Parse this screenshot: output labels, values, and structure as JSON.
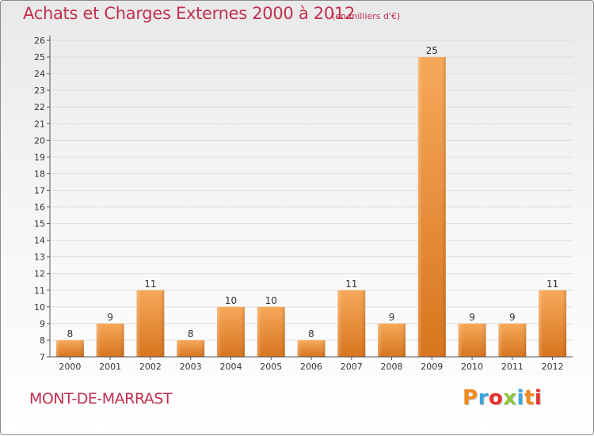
{
  "header": {
    "title": "Achats et Charges Externes 2000 à 2012",
    "subtitle": "(en milliers d'€)"
  },
  "footer": {
    "commune": "MONT-DE-MARRAST",
    "logo_text": "Proxiti",
    "logo_colors": [
      "#f08a1c",
      "#3aa7e0",
      "#e8322e",
      "#8cc63f",
      "#3aa7e0",
      "#f08a1c",
      "#e8322e"
    ]
  },
  "colors": {
    "bar_light": "#f6a95a",
    "bar_dark": "#d8751f",
    "axis": "#555555",
    "grid": "#dddddd",
    "title": "#c0304e"
  },
  "chart_data": {
    "type": "bar",
    "title": "Achats et Charges Externes 2000 à 2012",
    "subtitle": "(en milliers d'€)",
    "xlabel": "",
    "ylabel": "",
    "ylim": [
      7,
      26
    ],
    "yticks": [
      7,
      8,
      9,
      10,
      11,
      12,
      13,
      14,
      15,
      16,
      17,
      18,
      19,
      20,
      21,
      22,
      23,
      24,
      25,
      26
    ],
    "grid": true,
    "categories": [
      "2000",
      "2001",
      "2002",
      "2003",
      "2004",
      "2005",
      "2006",
      "2007",
      "2008",
      "2009",
      "2010",
      "2011",
      "2012"
    ],
    "values": [
      8,
      9,
      11,
      8,
      10,
      10,
      8,
      11,
      9,
      25,
      9,
      9,
      11
    ],
    "data_labels": true
  }
}
